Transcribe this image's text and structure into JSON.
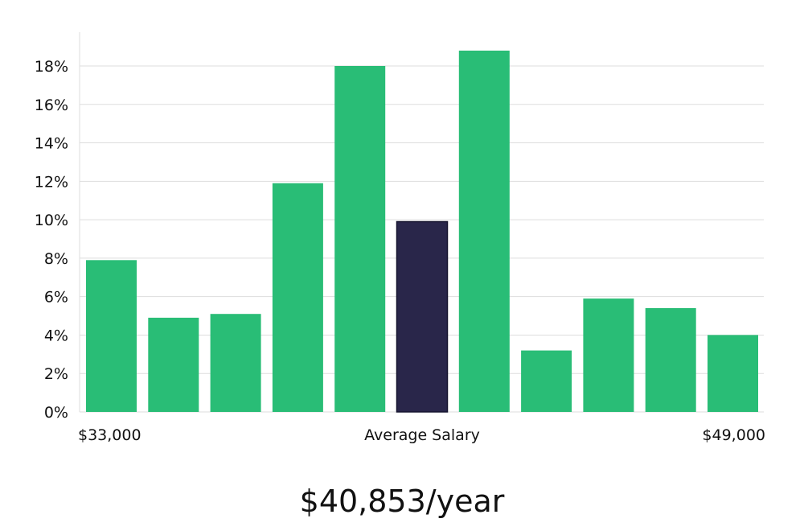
{
  "chart_data": {
    "type": "bar",
    "title": "",
    "xlabel": "Average Salary",
    "ylabel": "",
    "x_start_label": "$33,000",
    "x_end_label": "$49,000",
    "ylim": [
      0,
      19.5
    ],
    "yticks": [
      0,
      2,
      4,
      6,
      8,
      10,
      12,
      14,
      16,
      18
    ],
    "ytick_labels": [
      "0%",
      "2%",
      "4%",
      "6%",
      "8%",
      "10%",
      "12%",
      "14%",
      "16%",
      "18%"
    ],
    "grid": true,
    "values": [
      7.9,
      4.9,
      5.1,
      11.9,
      18.0,
      9.9,
      18.8,
      3.2,
      5.9,
      5.4,
      4.0
    ],
    "highlight_index": 5,
    "colors": {
      "bar": "#29bd76",
      "highlight": "#29264a",
      "grid": "#dddddd",
      "axis": "#dddddd"
    }
  },
  "summary": {
    "salary": "$40,853/year"
  }
}
